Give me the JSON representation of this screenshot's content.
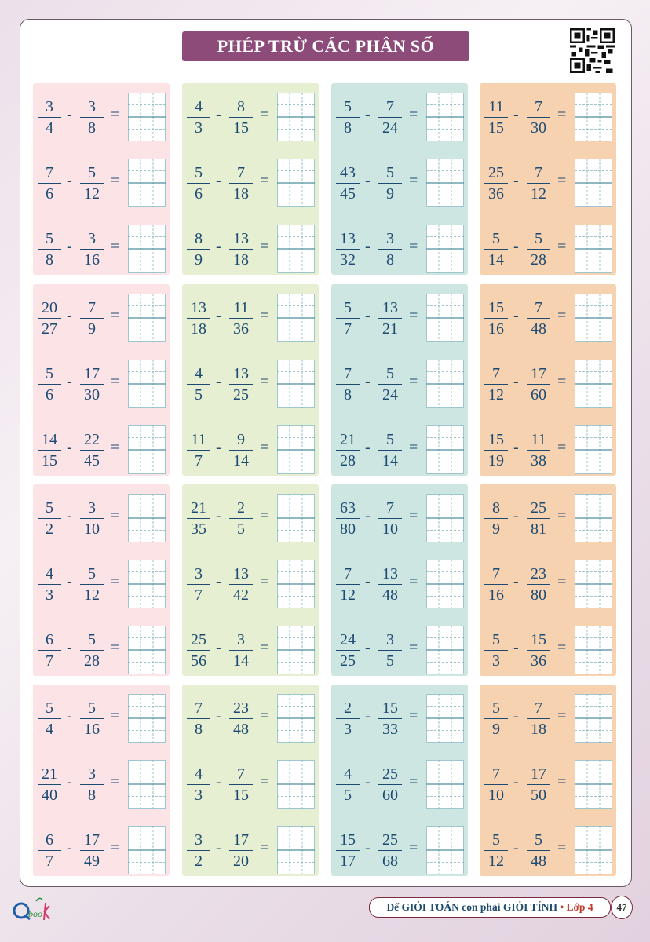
{
  "title": "PHÉP TRỪ CÁC PHÂN SỐ",
  "operator": "-",
  "equals": "=",
  "block_colors": [
    "#fbe3e6",
    "#e6efd2",
    "#cde6e2",
    "#f6d2b0"
  ],
  "blocks": [
    {
      "problems": [
        [
          "3",
          "4",
          "3",
          "8"
        ],
        [
          "7",
          "6",
          "5",
          "12"
        ],
        [
          "5",
          "8",
          "3",
          "16"
        ]
      ]
    },
    {
      "problems": [
        [
          "4",
          "3",
          "8",
          "15"
        ],
        [
          "5",
          "6",
          "7",
          "18"
        ],
        [
          "8",
          "9",
          "13",
          "18"
        ]
      ]
    },
    {
      "problems": [
        [
          "5",
          "8",
          "7",
          "24"
        ],
        [
          "43",
          "45",
          "5",
          "9"
        ],
        [
          "13",
          "32",
          "3",
          "8"
        ]
      ]
    },
    {
      "problems": [
        [
          "11",
          "15",
          "7",
          "30"
        ],
        [
          "25",
          "36",
          "7",
          "12"
        ],
        [
          "5",
          "14",
          "5",
          "28"
        ]
      ]
    },
    {
      "problems": [
        [
          "20",
          "27",
          "7",
          "9"
        ],
        [
          "5",
          "6",
          "17",
          "30"
        ],
        [
          "14",
          "15",
          "22",
          "45"
        ]
      ]
    },
    {
      "problems": [
        [
          "13",
          "18",
          "11",
          "36"
        ],
        [
          "4",
          "5",
          "13",
          "25"
        ],
        [
          "11",
          "7",
          "9",
          "14"
        ]
      ]
    },
    {
      "problems": [
        [
          "5",
          "7",
          "13",
          "21"
        ],
        [
          "7",
          "8",
          "5",
          "24"
        ],
        [
          "21",
          "28",
          "5",
          "14"
        ]
      ]
    },
    {
      "problems": [
        [
          "15",
          "16",
          "7",
          "48"
        ],
        [
          "7",
          "12",
          "17",
          "60"
        ],
        [
          "15",
          "19",
          "11",
          "38"
        ]
      ]
    },
    {
      "problems": [
        [
          "5",
          "2",
          "3",
          "10"
        ],
        [
          "4",
          "3",
          "5",
          "12"
        ],
        [
          "6",
          "7",
          "5",
          "28"
        ]
      ]
    },
    {
      "problems": [
        [
          "21",
          "35",
          "2",
          "5"
        ],
        [
          "3",
          "7",
          "13",
          "42"
        ],
        [
          "25",
          "56",
          "3",
          "14"
        ]
      ]
    },
    {
      "problems": [
        [
          "63",
          "80",
          "7",
          "10"
        ],
        [
          "7",
          "12",
          "13",
          "48"
        ],
        [
          "24",
          "25",
          "3",
          "5"
        ]
      ]
    },
    {
      "problems": [
        [
          "8",
          "9",
          "25",
          "81"
        ],
        [
          "7",
          "16",
          "23",
          "80"
        ],
        [
          "5",
          "3",
          "15",
          "36"
        ]
      ]
    },
    {
      "problems": [
        [
          "5",
          "4",
          "5",
          "16"
        ],
        [
          "21",
          "40",
          "3",
          "8"
        ],
        [
          "6",
          "7",
          "17",
          "49"
        ]
      ]
    },
    {
      "problems": [
        [
          "7",
          "8",
          "23",
          "48"
        ],
        [
          "4",
          "3",
          "7",
          "15"
        ],
        [
          "3",
          "2",
          "17",
          "20"
        ]
      ]
    },
    {
      "problems": [
        [
          "2",
          "3",
          "15",
          "33"
        ],
        [
          "4",
          "5",
          "25",
          "60"
        ],
        [
          "15",
          "17",
          "25",
          "68"
        ]
      ]
    },
    {
      "problems": [
        [
          "5",
          "9",
          "7",
          "18"
        ],
        [
          "7",
          "10",
          "17",
          "50"
        ],
        [
          "5",
          "12",
          "5",
          "48"
        ]
      ]
    }
  ],
  "footer": {
    "series": "Để GIỎI TOÁN con phải GIỎI TÍNH",
    "bullet": "•",
    "grade": "Lớp 4",
    "page_number": "47",
    "logo": "Qbooks"
  }
}
